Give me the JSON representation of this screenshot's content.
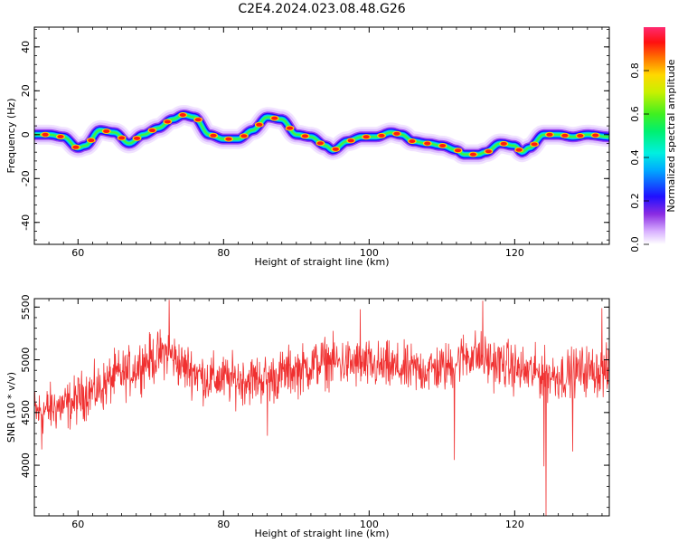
{
  "title": "C2E4.2024.023.08.48.G26",
  "chart_data": [
    {
      "type": "heatmap",
      "xlabel": "Height of straight line (km)",
      "ylabel": "Frequency (Hz)",
      "xlim": [
        54,
        133
      ],
      "ylim": [
        -50,
        49
      ],
      "xticks": [
        "60",
        "80",
        "100",
        "120"
      ],
      "xtick_values": [
        60,
        80,
        100,
        120
      ],
      "yticks": [
        "40",
        "20",
        "0",
        "-20",
        "-40"
      ],
      "ytick_values": [
        40,
        20,
        0,
        -20,
        -40
      ],
      "ridge": {
        "x": [
          54,
          56,
          58,
          60,
          61,
          63,
          65,
          67,
          69,
          71,
          73,
          74.5,
          76,
          78,
          80,
          82,
          84,
          86,
          88,
          90,
          92,
          94,
          95,
          97,
          99,
          101,
          103,
          104.5,
          106,
          108,
          110,
          112,
          113,
          115,
          116,
          118,
          120,
          121,
          122,
          124,
          126,
          128,
          130,
          133
        ],
        "y": [
          0,
          0,
          -1,
          -6,
          -5,
          2,
          1,
          -4,
          0,
          3,
          7,
          9,
          8,
          0,
          -2,
          -2,
          2,
          8,
          7,
          0,
          -1,
          -5,
          -7,
          -3,
          -1,
          -1,
          1,
          0,
          -3,
          -4,
          -5,
          -7,
          -9,
          -9,
          -8,
          -4,
          -5,
          -8,
          -6,
          0,
          0,
          -1,
          0,
          -1
        ]
      },
      "colorbar": {
        "label": "Normalized spectral amplitude",
        "ticks": [
          "0.0",
          "0.2",
          "0.4",
          "0.6",
          "0.8"
        ],
        "tick_values": [
          0.0,
          0.2,
          0.4,
          0.6,
          0.8
        ],
        "range": [
          0,
          1
        ]
      }
    },
    {
      "type": "line",
      "xlabel": "Height of straight line (km)",
      "ylabel": "SNR (10 * v/v)",
      "xlim": [
        54,
        133
      ],
      "ylim": [
        3520,
        5580
      ],
      "xticks": [
        "60",
        "80",
        "100",
        "120"
      ],
      "xtick_values": [
        60,
        80,
        100,
        120
      ],
      "yticks": [
        "5500",
        "5000",
        "4500",
        "4000"
      ],
      "ytick_values": [
        5500,
        5000,
        4500,
        4000
      ],
      "color": "#f03030",
      "trend": {
        "x": [
          54,
          58,
          62,
          66,
          70,
          72,
          75,
          78,
          82,
          86,
          90,
          94,
          98,
          102,
          106,
          110,
          114,
          118,
          122,
          126,
          130,
          133
        ],
        "y": [
          4500,
          4560,
          4700,
          4860,
          5000,
          5070,
          4920,
          4820,
          4810,
          4820,
          4900,
          4980,
          4960,
          4930,
          4900,
          4920,
          5050,
          4960,
          4880,
          4850,
          4900,
          4880
        ]
      },
      "spikes": [
        {
          "x": 72.5,
          "y": 5570
        },
        {
          "x": 86,
          "y": 4280
        },
        {
          "x": 98.8,
          "y": 5480
        },
        {
          "x": 115.6,
          "y": 5560
        },
        {
          "x": 111.7,
          "y": 4050
        },
        {
          "x": 124,
          "y": 3990
        },
        {
          "x": 124.3,
          "y": 3520
        },
        {
          "x": 128,
          "y": 4130
        },
        {
          "x": 132,
          "y": 5490
        },
        {
          "x": 55,
          "y": 4150
        }
      ]
    }
  ]
}
